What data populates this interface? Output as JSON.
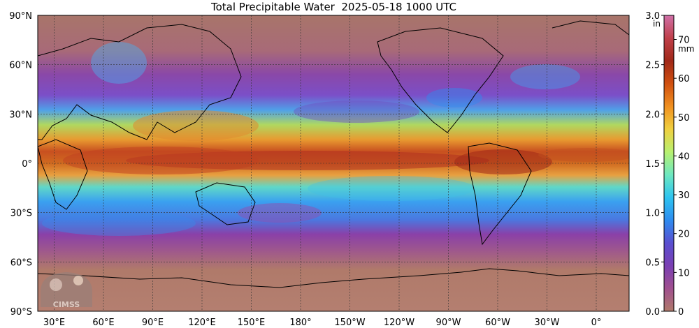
{
  "title": "Total Precipitable Water  2025-05-18 1000 UTC",
  "map": {
    "lat_labels": [
      "90°N",
      "60°N",
      "30°N",
      "0°",
      "30°S",
      "60°S",
      "90°S"
    ],
    "lon_labels": [
      "30°E",
      "60°E",
      "90°E",
      "120°E",
      "150°E",
      "180°",
      "150°W",
      "120°W",
      "90°W",
      "60°W",
      "30°W",
      "0°"
    ],
    "lon_range": [
      20,
      380
    ],
    "lat_range": [
      -90,
      90
    ]
  },
  "colorbar": {
    "unit_in": "in",
    "unit_mm": "mm",
    "ticks_in": [
      "3.0",
      "2.5",
      "2.0",
      "1.5",
      "1.0",
      "0.5",
      "0.0"
    ],
    "ticks_in_values": [
      3.0,
      2.5,
      2.0,
      1.5,
      1.0,
      0.5,
      0.0
    ],
    "ticks_mm": [
      "70",
      "60",
      "50",
      "40",
      "30",
      "20",
      "10",
      "0"
    ],
    "ticks_mm_values": [
      70,
      60,
      50,
      40,
      30,
      20,
      10,
      0
    ],
    "range_mm": [
      0,
      76.2
    ],
    "colors": [
      "#b07a6a",
      "#a0508f",
      "#7a3fb3",
      "#5a4fd0",
      "#2e8cf0",
      "#2ec4f0",
      "#6ee8c0",
      "#b8f070",
      "#f0d040",
      "#f09020",
      "#d05010",
      "#a02818",
      "#c0404a",
      "#d070a8"
    ]
  },
  "logo": {
    "text": "CIMSS"
  }
}
